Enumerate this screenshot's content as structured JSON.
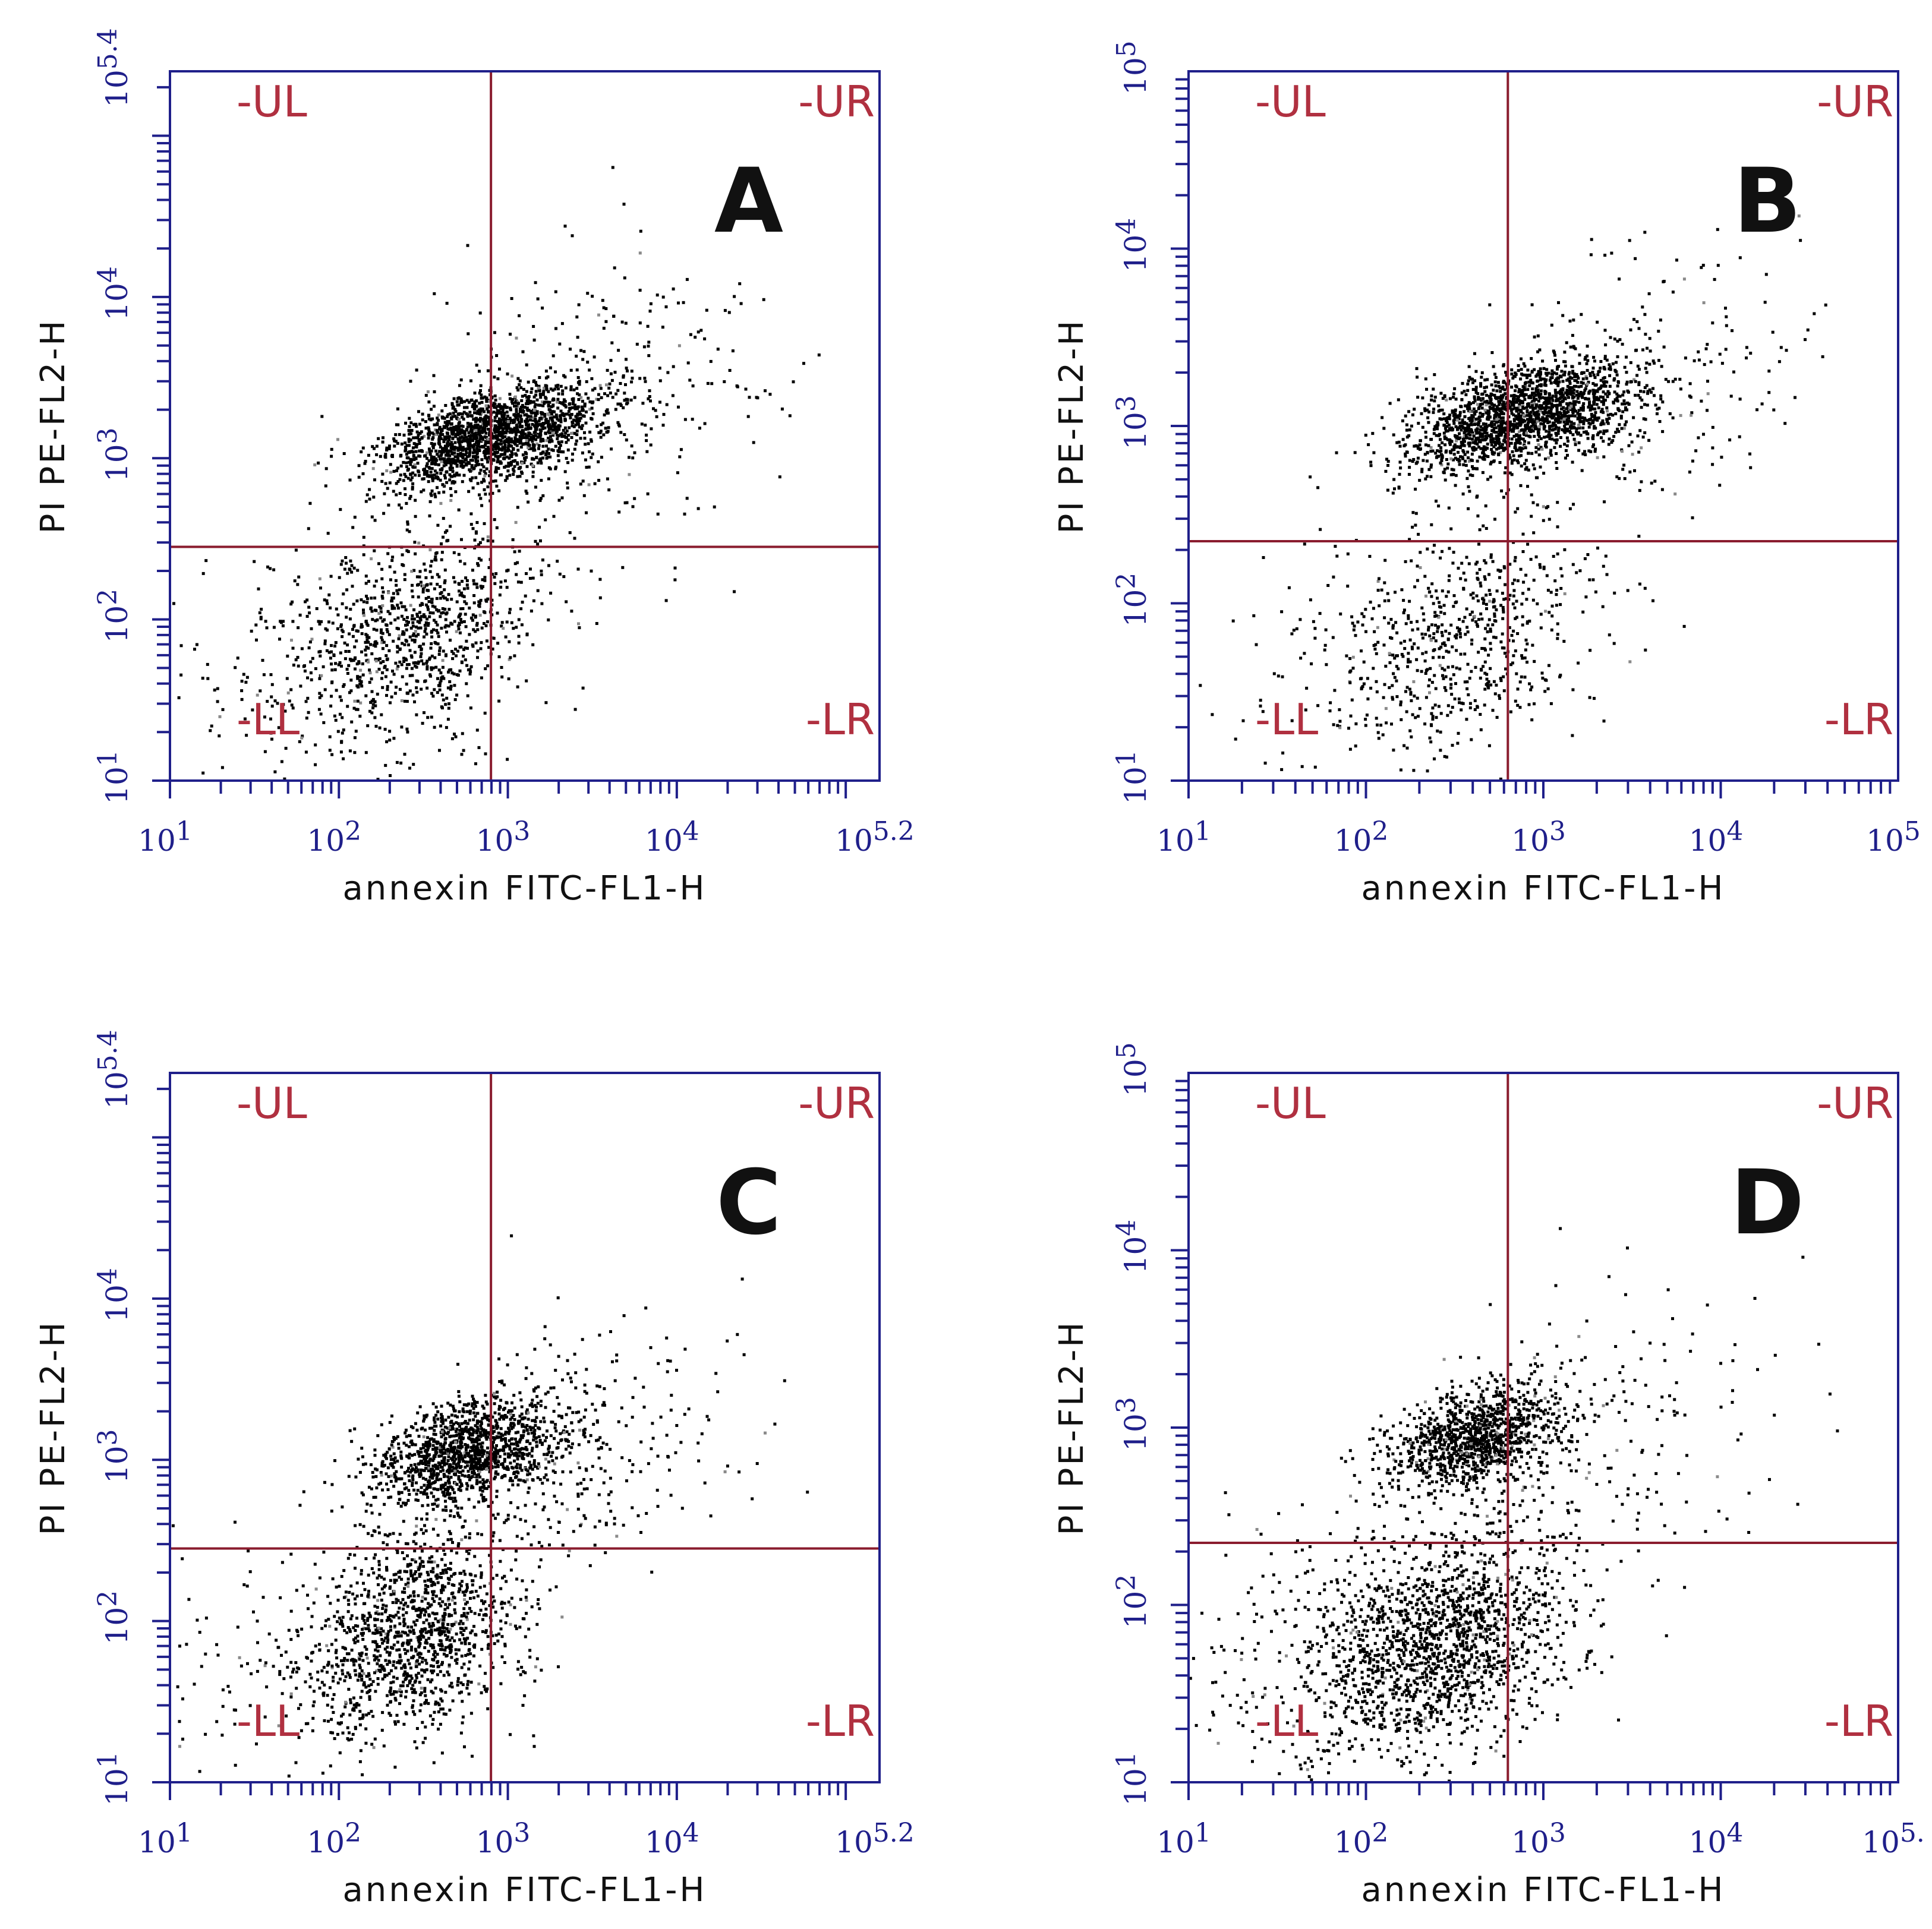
{
  "colors": {
    "frame": "#1f1f8a",
    "gate": "#8a1c2e",
    "quadrant_text": "#b03040",
    "dots": "#000000"
  },
  "chart_data": [
    {
      "type": "scatter",
      "panel": "A",
      "xlabel": "annexin FITC-FL1-H",
      "ylabel": "PI PE-FL2-H",
      "x_scale": "log",
      "y_scale": "log",
      "xlim": [
        1,
        5.2
      ],
      "ylim": [
        1,
        5.4
      ],
      "x_tick_labels": [
        {
          "base": "10",
          "exp": "1"
        },
        {
          "base": "10",
          "exp": "2"
        },
        {
          "base": "10",
          "exp": "3"
        },
        {
          "base": "10",
          "exp": "4"
        },
        {
          "base": "10",
          "exp": "5.2"
        }
      ],
      "y_tick_labels": [
        {
          "base": "10",
          "exp": "1"
        },
        {
          "base": "10",
          "exp": "2"
        },
        {
          "base": "10",
          "exp": "3"
        },
        {
          "base": "10",
          "exp": "4"
        },
        {
          "base": "10",
          "exp": "5.4"
        }
      ],
      "gate": {
        "x": 2.9,
        "y": 2.45
      },
      "quadrants": [
        "-UL",
        "-UR",
        "-LL",
        "-LR"
      ],
      "clusters": [
        {
          "cx": 2.9,
          "cy": 3.15,
          "sx": 0.32,
          "sy": 0.14,
          "n": 1800
        },
        {
          "cx": 2.45,
          "cy": 1.95,
          "sx": 0.38,
          "sy": 0.32,
          "n": 900
        },
        {
          "cx": 3.5,
          "cy": 3.4,
          "sx": 0.55,
          "sy": 0.42,
          "n": 300
        },
        {
          "cx": 1.9,
          "cy": 1.7,
          "sx": 0.55,
          "sy": 0.4,
          "n": 200
        }
      ]
    },
    {
      "type": "scatter",
      "panel": "B",
      "xlabel": "annexin FITC-FL1-H",
      "ylabel": "PI PE-FL2-H",
      "x_scale": "log",
      "y_scale": "log",
      "xlim": [
        1,
        5
      ],
      "ylim": [
        1,
        5
      ],
      "x_tick_labels": [
        {
          "base": "10",
          "exp": "1"
        },
        {
          "base": "10",
          "exp": "2"
        },
        {
          "base": "10",
          "exp": "3"
        },
        {
          "base": "10",
          "exp": "4"
        },
        {
          "base": "10",
          "exp": "5"
        }
      ],
      "y_tick_labels": [
        {
          "base": "10",
          "exp": "1"
        },
        {
          "base": "10",
          "exp": "2"
        },
        {
          "base": "10",
          "exp": "3"
        },
        {
          "base": "10",
          "exp": "4"
        },
        {
          "base": "10",
          "exp": "5"
        }
      ],
      "gate": {
        "x": 2.8,
        "y": 2.35
      },
      "quadrants": [
        "-UL",
        "-UR",
        "-LL",
        "-LR"
      ],
      "clusters": [
        {
          "cx": 2.85,
          "cy": 3.05,
          "sx": 0.32,
          "sy": 0.13,
          "n": 1800
        },
        {
          "cx": 2.55,
          "cy": 1.8,
          "sx": 0.35,
          "sy": 0.3,
          "n": 600
        },
        {
          "cx": 3.4,
          "cy": 3.2,
          "sx": 0.5,
          "sy": 0.35,
          "n": 300
        },
        {
          "cx": 2.0,
          "cy": 1.8,
          "sx": 0.5,
          "sy": 0.4,
          "n": 120
        }
      ]
    },
    {
      "type": "scatter",
      "panel": "C",
      "xlabel": "annexin FITC-FL1-H",
      "ylabel": "PI PE-FL2-H",
      "x_scale": "log",
      "y_scale": "log",
      "xlim": [
        1,
        5.2
      ],
      "ylim": [
        1,
        5.4
      ],
      "x_tick_labels": [
        {
          "base": "10",
          "exp": "1"
        },
        {
          "base": "10",
          "exp": "2"
        },
        {
          "base": "10",
          "exp": "3"
        },
        {
          "base": "10",
          "exp": "4"
        },
        {
          "base": "10",
          "exp": "5.2"
        }
      ],
      "y_tick_labels": [
        {
          "base": "10",
          "exp": "1"
        },
        {
          "base": "10",
          "exp": "2"
        },
        {
          "base": "10",
          "exp": "3"
        },
        {
          "base": "10",
          "exp": "4"
        },
        {
          "base": "10",
          "exp": "5.4"
        }
      ],
      "gate": {
        "x": 2.9,
        "y": 2.45
      },
      "quadrants": [
        "-UL",
        "-UR",
        "-LL",
        "-LR"
      ],
      "clusters": [
        {
          "cx": 2.75,
          "cy": 3.05,
          "sx": 0.28,
          "sy": 0.15,
          "n": 1300
        },
        {
          "cx": 2.45,
          "cy": 1.95,
          "sx": 0.32,
          "sy": 0.3,
          "n": 1200
        },
        {
          "cx": 3.4,
          "cy": 3.1,
          "sx": 0.5,
          "sy": 0.4,
          "n": 300
        },
        {
          "cx": 1.8,
          "cy": 1.7,
          "sx": 0.5,
          "sy": 0.4,
          "n": 200
        }
      ]
    },
    {
      "type": "scatter",
      "panel": "D",
      "xlabel": "annexin FITC-FL1-H",
      "ylabel": "PI PE-FL2-H",
      "x_scale": "log",
      "y_scale": "log",
      "xlim": [
        1,
        5
      ],
      "ylim": [
        1,
        5
      ],
      "x_tick_labels": [
        {
          "base": "10",
          "exp": "1"
        },
        {
          "base": "10",
          "exp": "2"
        },
        {
          "base": "10",
          "exp": "3"
        },
        {
          "base": "10",
          "exp": "4"
        },
        {
          "base": "10",
          "exp": "5."
        }
      ],
      "y_tick_labels": [
        {
          "base": "10",
          "exp": "1"
        },
        {
          "base": "10",
          "exp": "2"
        },
        {
          "base": "10",
          "exp": "3"
        },
        {
          "base": "10",
          "exp": "4"
        },
        {
          "base": "10",
          "exp": "5"
        }
      ],
      "gate": {
        "x": 2.8,
        "y": 2.35
      },
      "quadrants": [
        "-UL",
        "-UR",
        "-LL",
        "-LR"
      ],
      "clusters": [
        {
          "cx": 2.6,
          "cy": 2.95,
          "sx": 0.25,
          "sy": 0.13,
          "n": 1100
        },
        {
          "cx": 2.4,
          "cy": 1.8,
          "sx": 0.35,
          "sy": 0.3,
          "n": 1600
        },
        {
          "cx": 3.2,
          "cy": 2.9,
          "sx": 0.5,
          "sy": 0.4,
          "n": 250
        },
        {
          "cx": 1.7,
          "cy": 1.7,
          "sx": 0.45,
          "sy": 0.4,
          "n": 200
        }
      ]
    }
  ]
}
